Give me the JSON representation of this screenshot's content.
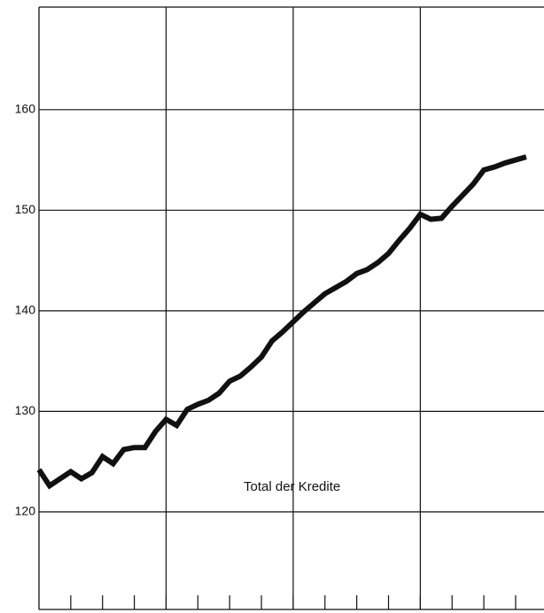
{
  "chart_data": {
    "type": "line",
    "annotation": "Total der Kredite",
    "categories": [
      null,
      null,
      null,
      null,
      null,
      null,
      null,
      null,
      null,
      null,
      null,
      null,
      null,
      null,
      null,
      null,
      null,
      null,
      null,
      null,
      null,
      null,
      null,
      null,
      null,
      null,
      null,
      null,
      null,
      null,
      null,
      null,
      null,
      null,
      null,
      null,
      null,
      null,
      null,
      null,
      null,
      null,
      null,
      null,
      null,
      null,
      null
    ],
    "series": [
      {
        "name": "Total der Kredite",
        "color": "#111111",
        "values": [
          124.2,
          122.6,
          123.3,
          124.0,
          123.3,
          123.9,
          125.5,
          124.8,
          126.2,
          126.4,
          126.4,
          128.0,
          129.2,
          128.6,
          130.2,
          130.7,
          131.1,
          131.8,
          133.0,
          133.5,
          134.4,
          135.4,
          137.0,
          137.9,
          138.9,
          139.9,
          140.8,
          141.7,
          142.3,
          142.9,
          143.7,
          144.1,
          144.8,
          145.7,
          147.0,
          148.2,
          149.6,
          149.1,
          149.2,
          150.4,
          151.5,
          152.6,
          154.0,
          154.3,
          154.7,
          155.0,
          155.3
        ]
      }
    ],
    "ylim": [
      110.3,
      170.2
    ],
    "yticks": [
      120,
      130,
      140,
      150,
      160
    ],
    "grid": true
  }
}
